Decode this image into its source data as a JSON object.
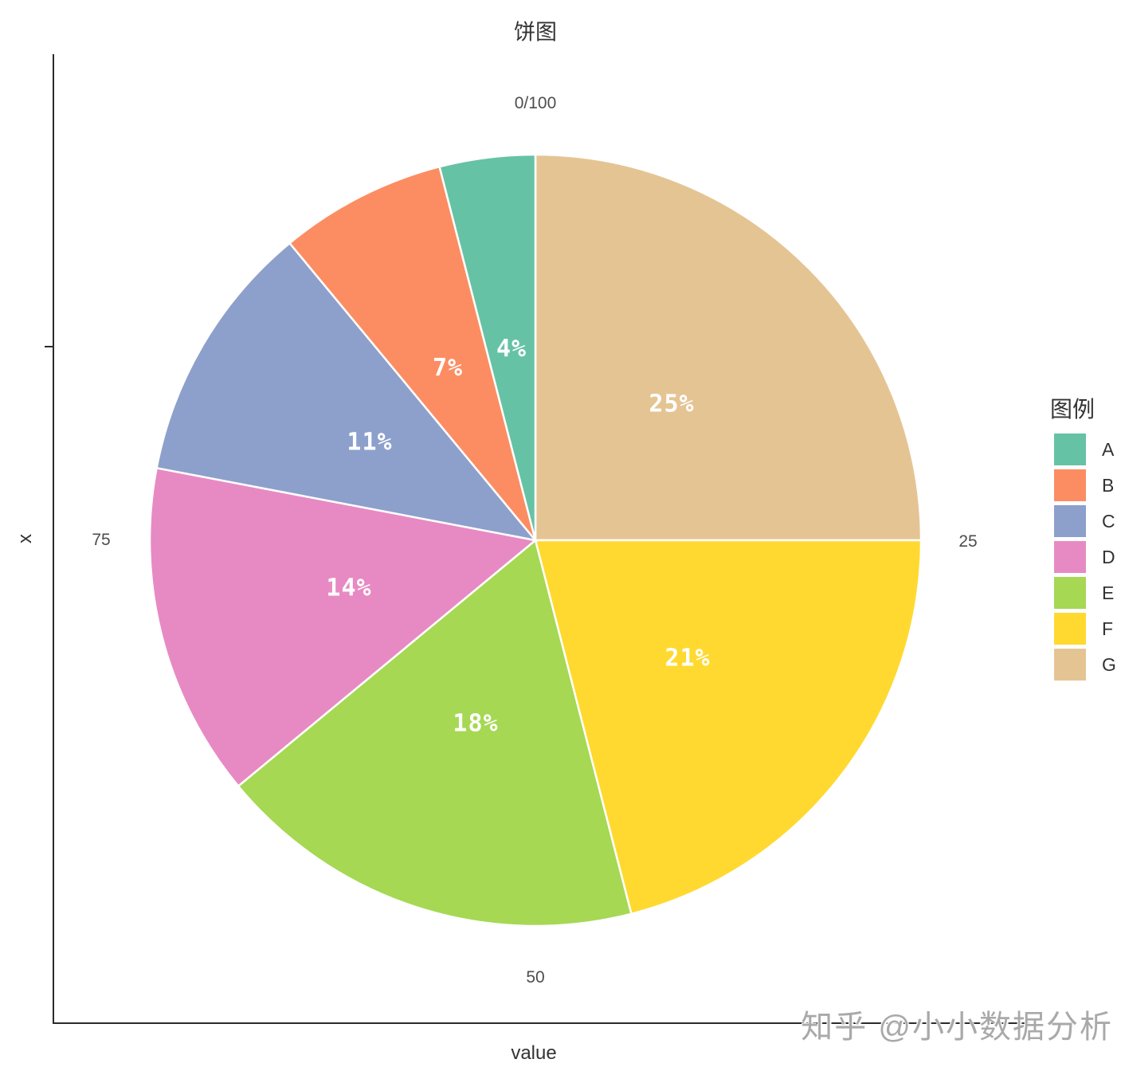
{
  "title": "饼图",
  "watermark": "知乎 @小小数据分析",
  "axes": {
    "x_title": "value",
    "y_title": "x",
    "tick_top": "0/100",
    "tick_right": "25",
    "tick_bottom": "50",
    "tick_left": "75"
  },
  "legend": {
    "title": "图例",
    "entries": [
      {
        "label": "A",
        "color": "#66C2A5"
      },
      {
        "label": "B",
        "color": "#FC8D62"
      },
      {
        "label": "C",
        "color": "#8DA0CB"
      },
      {
        "label": "D",
        "color": "#E78AC3"
      },
      {
        "label": "E",
        "color": "#A6D854"
      },
      {
        "label": "F",
        "color": "#FFD92F"
      },
      {
        "label": "G",
        "color": "#E5C494"
      }
    ]
  },
  "chart_data": {
    "type": "pie",
    "title": "饼图",
    "categories": [
      "A",
      "B",
      "C",
      "D",
      "E",
      "F",
      "G"
    ],
    "values": [
      4,
      7,
      11,
      14,
      18,
      21,
      25
    ],
    "slice_labels": [
      "4%",
      "7%",
      "11%",
      "14%",
      "18%",
      "21%",
      "25%"
    ],
    "colors": [
      "#66C2A5",
      "#FC8D62",
      "#8DA0CB",
      "#E78AC3",
      "#A6D854",
      "#FFD92F",
      "#E5C494"
    ],
    "total": 100,
    "start_angle": "top",
    "direction": "counterclockwise",
    "slice_label_radius_fraction": 0.5,
    "slice_label_color": "#FFFFFF",
    "slice_border_color": "#FFFFFF",
    "theta_tick_labels": {
      "top": "0/100",
      "right": "25",
      "bottom": "50",
      "left": "75"
    },
    "xlabel": "value",
    "ylabel": "x",
    "legend_title": "图例",
    "legend_position": "right"
  }
}
